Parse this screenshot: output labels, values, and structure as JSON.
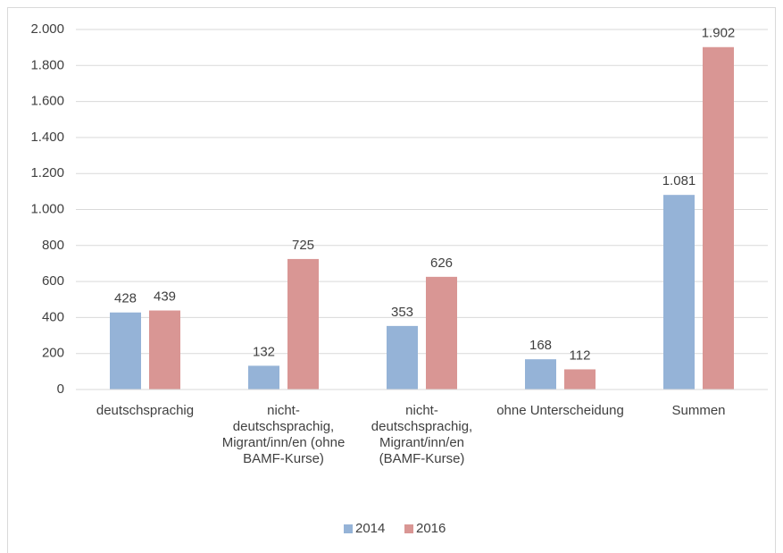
{
  "chart_data": {
    "type": "bar",
    "categories": [
      "deutschsprachig",
      "nicht-deutschsprachig, Migrant/inn/en (ohne BAMF-Kurse)",
      "nicht-deutschsprachig, Migrant/inn/en (BAMF-Kurse)",
      "ohne Unterscheidung",
      "Summen"
    ],
    "series": [
      {
        "name": "2014",
        "color": "#95b3d7",
        "values": [
          428,
          132,
          353,
          168,
          1081
        ],
        "value_labels": [
          "428",
          "132",
          "353",
          "168",
          "1.081"
        ]
      },
      {
        "name": "2016",
        "color": "#d99694",
        "values": [
          439,
          725,
          626,
          112,
          1902
        ],
        "value_labels": [
          "439",
          "725",
          "626",
          "112",
          "1.902"
        ]
      }
    ],
    "ylim": [
      0,
      2000
    ],
    "yticks": [
      0,
      200,
      400,
      600,
      800,
      {
        "value": 1000,
        "label": "1.000"
      },
      {
        "value": 1200,
        "label": "1.200"
      },
      {
        "value": 1400,
        "label": "1.400"
      },
      {
        "value": 1600,
        "label": "1.600"
      },
      {
        "value": 1800,
        "label": "1.800"
      },
      {
        "value": 2000,
        "label": "2.000"
      }
    ],
    "grid": true,
    "legend": "bottom"
  }
}
